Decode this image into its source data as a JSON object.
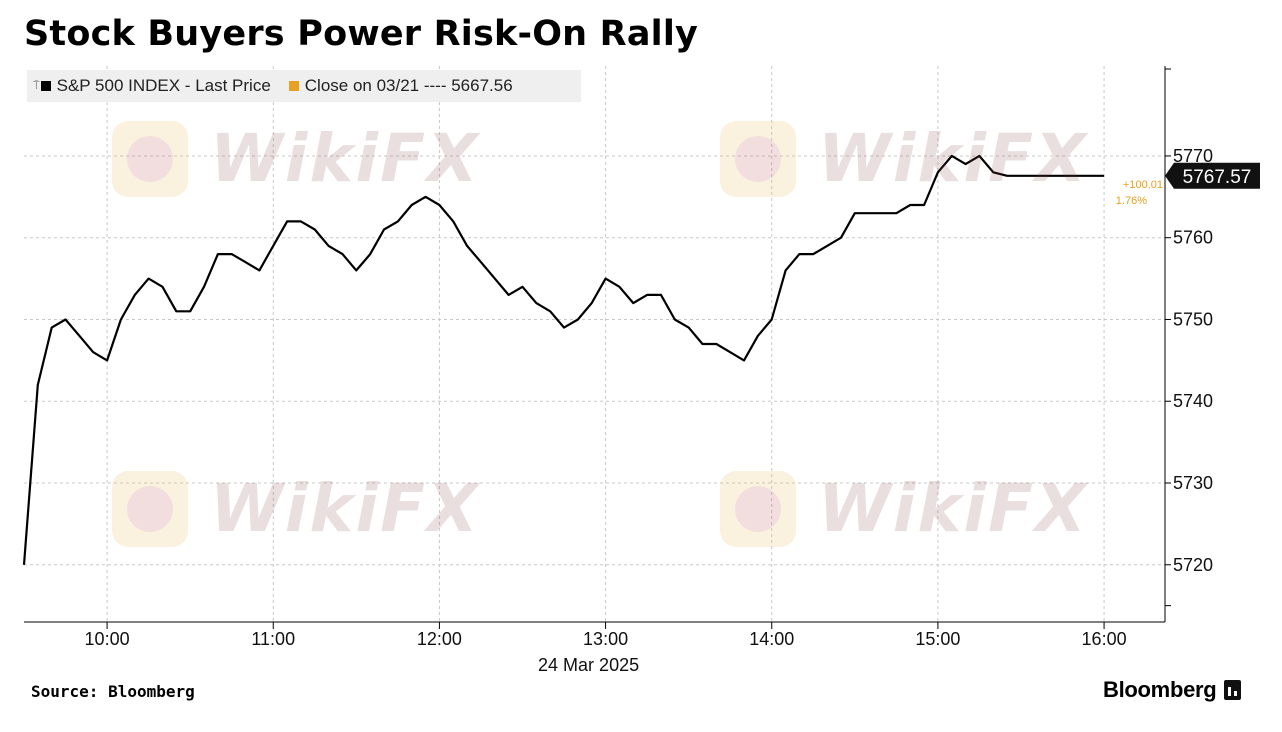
{
  "title": "Stock Buyers Power Risk-On Rally",
  "legend": {
    "series_label": "S&P 500 INDEX - Last Price",
    "close_label": "Close on 03/21 ---- 5667.56"
  },
  "source": "Source:  Bloomberg",
  "brand": "Bloomberg",
  "watermark": "WikiFX",
  "colors": {
    "series": "#000000",
    "close": "#e8a020",
    "grid": "#c8c8c8",
    "legend_bg": "#efefef"
  },
  "chart_data": {
    "type": "line",
    "series": [
      {
        "name": "S&P 500 INDEX - Last Price",
        "x": [
          "09:30",
          "09:35",
          "09:40",
          "09:45",
          "09:50",
          "09:55",
          "10:00",
          "10:05",
          "10:10",
          "10:15",
          "10:20",
          "10:25",
          "10:30",
          "10:35",
          "10:40",
          "10:45",
          "10:50",
          "10:55",
          "11:00",
          "11:05",
          "11:10",
          "11:15",
          "11:20",
          "11:25",
          "11:30",
          "11:35",
          "11:40",
          "11:45",
          "11:50",
          "11:55",
          "12:00",
          "12:05",
          "12:10",
          "12:15",
          "12:20",
          "12:25",
          "12:30",
          "12:35",
          "12:40",
          "12:45",
          "12:50",
          "12:55",
          "13:00",
          "13:05",
          "13:10",
          "13:15",
          "13:20",
          "13:25",
          "13:30",
          "13:35",
          "13:40",
          "13:45",
          "13:50",
          "13:55",
          "14:00",
          "14:05",
          "14:10",
          "14:15",
          "14:20",
          "14:25",
          "14:30",
          "14:35",
          "14:40",
          "14:45",
          "14:50",
          "14:55",
          "15:00",
          "15:05",
          "15:10",
          "15:15",
          "15:20",
          "15:25",
          "15:30",
          "15:35",
          "15:40",
          "15:45",
          "15:50",
          "15:55",
          "16:00"
        ],
        "y": [
          5720,
          5742,
          5749,
          5750,
          5748,
          5746,
          5745,
          5750,
          5753,
          5755,
          5754,
          5751,
          5751,
          5754,
          5758,
          5758,
          5757,
          5756,
          5759,
          5762,
          5762,
          5761,
          5759,
          5758,
          5756,
          5758,
          5761,
          5762,
          5764,
          5765,
          5764,
          5762,
          5759,
          5757,
          5755,
          5753,
          5754,
          5752,
          5751,
          5749,
          5750,
          5752,
          5755,
          5754,
          5752,
          5753,
          5753,
          5750,
          5749,
          5747,
          5747,
          5746,
          5745,
          5748,
          5750,
          5756,
          5758,
          5758,
          5759,
          5760,
          5763,
          5763,
          5763,
          5763,
          5764,
          5764,
          5768,
          5770,
          5769,
          5770,
          5768,
          5767.57,
          5767.57,
          5767.57,
          5767.57,
          5767.57,
          5767.57,
          5767.57,
          5767.57
        ]
      }
    ],
    "close_reference": {
      "date": "03/21",
      "value": 5667.56
    },
    "last_value": "5767.57",
    "change_abs": "+100.01",
    "change_pct": "1.76%",
    "ylim": [
      5713,
      5781
    ],
    "yticks": [
      "5720",
      "5730",
      "5740",
      "5750",
      "5760",
      "5770"
    ],
    "xticks": [
      "10:00",
      "11:00",
      "12:00",
      "13:00",
      "14:00",
      "15:00",
      "16:00"
    ],
    "xlabel": "24 Mar 2025",
    "ylabel": "",
    "grid": true,
    "legend_position": "top-left"
  }
}
